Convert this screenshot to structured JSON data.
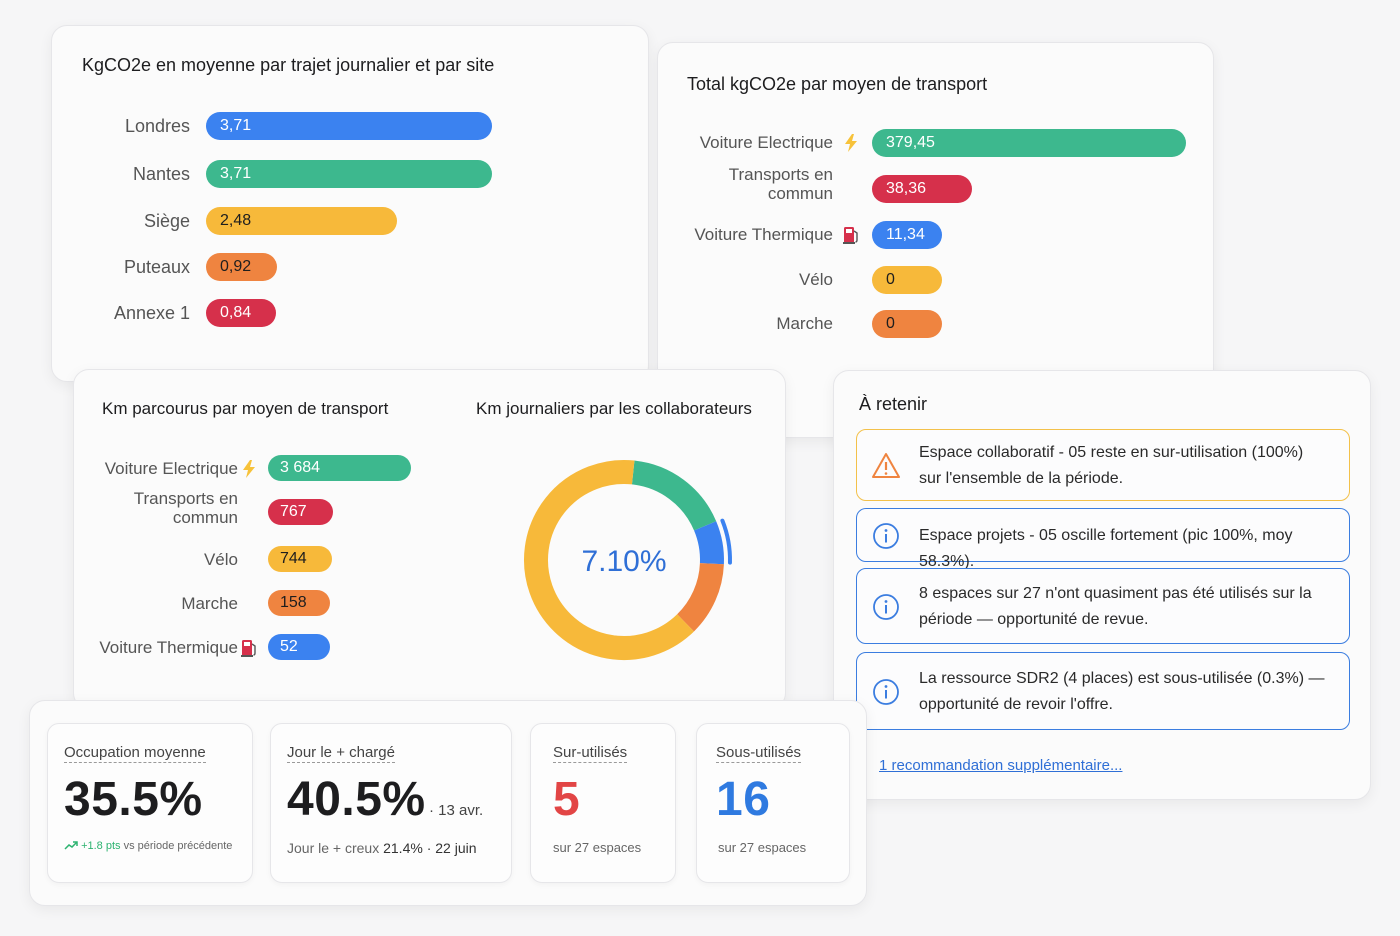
{
  "colors": {
    "blue": "#3b82f0",
    "green": "#3db88e",
    "yellow": "#f7b93a",
    "orange": "#ef8440",
    "red": "#d6304b",
    "kpi_red": "#e24545",
    "kpi_blue": "#2f7ae0",
    "trend_green": "#2db370"
  },
  "sites_card": {
    "title": "KgCO2e en moyenne par trajet journalier et par site",
    "chart_data": {
      "type": "bar",
      "orientation": "horizontal",
      "categories": [
        "Londres",
        "Nantes",
        "Siège",
        "Puteaux",
        "Annexe 1"
      ],
      "labels": [
        "3,71",
        "3,71",
        "2,48",
        "0,92",
        "0,84"
      ],
      "values": [
        3.71,
        3.71,
        2.48,
        0.92,
        0.84
      ],
      "colors": [
        "blue",
        "green",
        "yellow",
        "orange",
        "red"
      ]
    }
  },
  "transport_card": {
    "title": "Total kgCO2e par moyen de transport",
    "chart_data": {
      "type": "bar",
      "orientation": "horizontal",
      "categories": [
        "Voiture Electrique",
        "Transports en commun",
        "Voiture Thermique",
        "Vélo",
        "Marche"
      ],
      "category_lines": [
        [
          "Voiture Electrique"
        ],
        [
          "Transports en",
          "commun"
        ],
        [
          "Voiture Thermique"
        ],
        [
          "Vélo"
        ],
        [
          "Marche"
        ]
      ],
      "icons": [
        "lightning-icon",
        "",
        "fuel-pump-icon",
        "",
        ""
      ],
      "labels": [
        "379,45",
        "38,36",
        "11,34",
        "0",
        "0"
      ],
      "values": [
        379.45,
        38.36,
        11.34,
        0,
        0
      ],
      "colors": [
        "green",
        "red",
        "blue",
        "yellow",
        "orange"
      ]
    }
  },
  "km_card": {
    "title": "Km parcourus par moyen de transport",
    "chart_data": {
      "type": "bar",
      "orientation": "horizontal",
      "categories": [
        "Voiture Electrique",
        "Transports en commun",
        "Vélo",
        "Marche",
        "Voiture Thermique"
      ],
      "category_lines": [
        [
          "Voiture Electrique"
        ],
        [
          "Transports en",
          "commun"
        ],
        [
          "Vélo"
        ],
        [
          "Marche"
        ],
        [
          "Voiture Thermique"
        ]
      ],
      "icons": [
        "lightning-icon",
        "",
        "",
        "",
        "fuel-pump-icon"
      ],
      "labels": [
        "3 684",
        "767",
        "744",
        "158",
        "52"
      ],
      "values": [
        3684,
        767,
        744,
        158,
        52
      ],
      "colors": [
        "green",
        "red",
        "yellow",
        "orange",
        "blue"
      ]
    }
  },
  "daily_card": {
    "title": "Km journaliers par les collaborateurs",
    "center_label": "7.10%",
    "chart_data": {
      "type": "pie",
      "style": "donut",
      "values": [
        17,
        7,
        12,
        64
      ],
      "colors": [
        "green",
        "blue",
        "orange",
        "yellow"
      ]
    }
  },
  "retenir": {
    "title": "À retenir",
    "alerts": [
      {
        "type": "warning",
        "icon": "warning-icon",
        "lines": [
          "Espace collaboratif - 05 reste en sur-utilisation (100%)",
          "sur l'ensemble de la période."
        ]
      },
      {
        "type": "info",
        "icon": "info-icon",
        "lines": [
          "Espace projets - 05 oscille fortement (pic 100%, moy 58.3%)."
        ]
      },
      {
        "type": "info",
        "icon": "info-icon",
        "lines": [
          "8 espaces sur 27 n'ont quasiment pas été utilisés sur la",
          "période — opportunité de revue."
        ]
      },
      {
        "type": "info",
        "icon": "info-icon",
        "lines": [
          "La ressource SDR2 (4 places) est sous-utilisée (0.3%) —",
          "opportunité de revoir l'offre."
        ]
      }
    ],
    "more_link": "1 recommandation supplémentaire..."
  },
  "kpis": {
    "occupation": {
      "label": "Occupation moyenne",
      "value": "35.5%",
      "trend_value": "+1.8 pts",
      "trend_text": "vs période précédente"
    },
    "busiest": {
      "label": "Jour le + chargé",
      "value": "40.5%",
      "date": "· 13 avr.",
      "sub_label": "Jour le + creux",
      "sub_value": "21.4% · 22 juin"
    },
    "over": {
      "label": "Sur-utilisés",
      "value": "5",
      "sub": "sur 27 espaces"
    },
    "under": {
      "label": "Sous-utilisés",
      "value": "16",
      "sub": "sur 27 espaces"
    }
  }
}
